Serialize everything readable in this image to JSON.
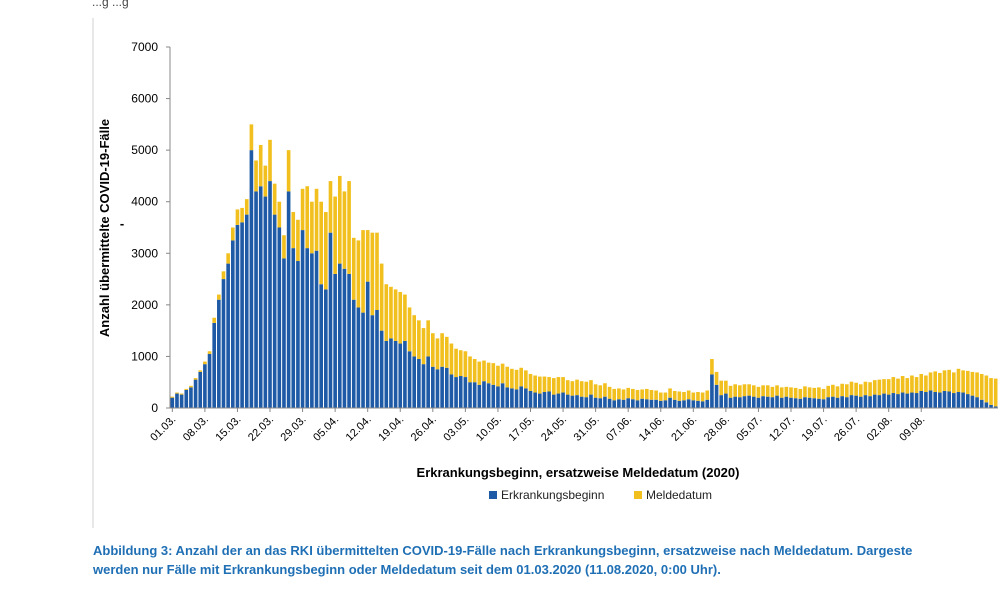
{
  "top_fragment": "...g ...g",
  "caption": {
    "line1": "Abbildung 3: Anzahl der an das RKI übermittelten COVID-19-Fälle nach Erkrankungsbeginn, ersatzweise nach Meldedatum. Dargeste",
    "line2": "werden nur Fälle mit Erkrankungsbeginn oder Meldedatum seit dem 01.03.2020 (11.08.2020, 0:00 Uhr)."
  },
  "chart_data": {
    "type": "bar",
    "stacked": true,
    "title": "",
    "xlabel": "Erkrankungsbeginn, ersatzweise Meldedatum (2020)",
    "ylabel": "Anzahl übermittelte COVID-19-Fälle",
    "ylabel_extra": "-",
    "ylim": [
      0,
      7000
    ],
    "yticks": [
      "0",
      "1000",
      "2000",
      "3000",
      "4000",
      "5000",
      "6000",
      "7000"
    ],
    "xticks": [
      "01.03.",
      "08.03.",
      "15.03.",
      "22.03.",
      "29.03.",
      "05.04.",
      "12.04.",
      "19.04.",
      "26.04.",
      "03.05.",
      "10.05.",
      "17.05.",
      "24.05.",
      "31.05.",
      "07.06.",
      "14.06.",
      "21.06.",
      "28.06.",
      "05.07.",
      "12.07.",
      "19.07.",
      "26.07.",
      "02.08.",
      "09.08."
    ],
    "legend_position": "bottom",
    "colors": {
      "Erkrankungsbeginn": "#1f5aa6",
      "Meldedatum": "#f2c01e"
    },
    "series": [
      {
        "name": "Erkrankungsbeginn",
        "values": [
          200,
          280,
          260,
          350,
          400,
          550,
          700,
          850,
          1050,
          1650,
          2100,
          2500,
          2800,
          3250,
          3550,
          3600,
          3750,
          5000,
          4200,
          4300,
          4100,
          4400,
          3750,
          3500,
          2900,
          4200,
          3100,
          2850,
          3450,
          3100,
          3000,
          3050,
          2400,
          2300,
          3400,
          2600,
          2800,
          2700,
          2600,
          2100,
          1950,
          1850,
          2450,
          1800,
          1900,
          1500,
          1300,
          1350,
          1300,
          1250,
          1300,
          1100,
          1000,
          950,
          850,
          1000,
          800,
          750,
          800,
          780,
          650,
          600,
          620,
          600,
          500,
          500,
          450,
          520,
          480,
          450,
          420,
          480,
          400,
          380,
          360,
          420,
          380,
          330,
          300,
          280,
          310,
          320,
          260,
          280,
          300,
          260,
          240,
          250,
          220,
          210,
          260,
          200,
          190,
          220,
          180,
          150,
          170,
          160,
          190,
          170,
          150,
          180,
          170,
          160,
          160,
          140,
          150,
          200,
          160,
          140,
          150,
          170,
          150,
          140,
          130,
          160,
          650,
          450,
          250,
          280,
          200,
          220,
          210,
          230,
          240,
          220,
          200,
          230,
          220,
          210,
          240,
          200,
          220,
          200,
          190,
          180,
          210,
          200,
          190,
          180,
          170,
          210,
          220,
          200,
          230,
          210,
          250,
          240,
          220,
          250,
          230,
          260,
          250,
          280,
          260,
          290,
          270,
          300,
          280,
          300,
          290,
          330,
          310,
          340,
          310,
          300,
          330,
          320,
          290,
          310,
          300,
          270,
          240,
          210,
          160,
          110,
          60,
          30
        ]
      },
      {
        "name": "Meldedatum",
        "values": [
          20,
          20,
          20,
          20,
          30,
          30,
          30,
          50,
          50,
          100,
          100,
          150,
          200,
          250,
          300,
          280,
          300,
          500,
          600,
          800,
          600,
          800,
          600,
          500,
          450,
          800,
          700,
          800,
          800,
          1200,
          1000,
          1200,
          1600,
          1500,
          1000,
          1500,
          1700,
          1500,
          1800,
          1200,
          1300,
          1600,
          1000,
          1600,
          1500,
          1300,
          1100,
          1000,
          1000,
          1000,
          900,
          850,
          800,
          750,
          700,
          700,
          650,
          600,
          650,
          600,
          600,
          550,
          500,
          500,
          500,
          450,
          450,
          400,
          400,
          420,
          400,
          380,
          400,
          380,
          380,
          360,
          350,
          330,
          330,
          330,
          300,
          280,
          320,
          320,
          300,
          280,
          280,
          300,
          300,
          300,
          280,
          260,
          250,
          260,
          230,
          220,
          210,
          200,
          200,
          200,
          200,
          180,
          200,
          190,
          180,
          160,
          150,
          180,
          170,
          180,
          160,
          170,
          150,
          170,
          170,
          180,
          300,
          250,
          280,
          250,
          230,
          240,
          230,
          230,
          220,
          220,
          210,
          210,
          220,
          200,
          200,
          200,
          190,
          200,
          200,
          190,
          210,
          200,
          200,
          220,
          200,
          220,
          230,
          220,
          240,
          250,
          260,
          250,
          240,
          260,
          270,
          280,
          300,
          280,
          300,
          310,
          300,
          320,
          300,
          330,
          310,
          330,
          320,
          350,
          400,
          380,
          400,
          420,
          400,
          450,
          430,
          450,
          460,
          480,
          500,
          520,
          520,
          540,
          560
        ]
      }
    ]
  }
}
